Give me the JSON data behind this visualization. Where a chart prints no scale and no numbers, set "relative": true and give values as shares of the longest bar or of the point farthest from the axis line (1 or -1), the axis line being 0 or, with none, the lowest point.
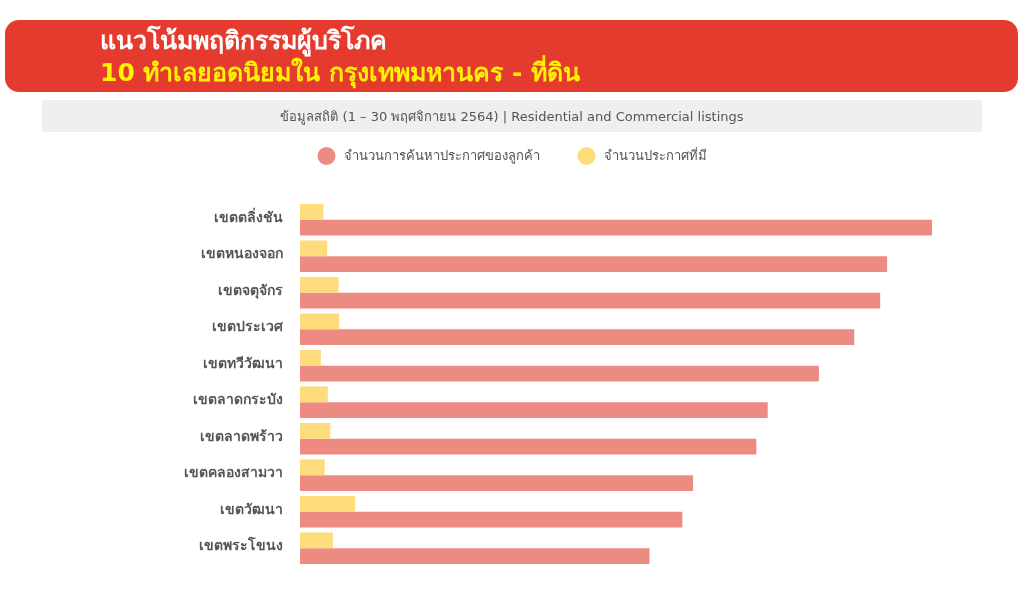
{
  "chart_data": {
    "type": "bar",
    "orientation": "horizontal",
    "relative": true,
    "legend": "top",
    "title": "แนวโน้มพฤติกรรมผู้บริโภค",
    "subtitle": "10 ทำเลยอดนิยมใน กรุงเทพมหานคร - ที่ดิน",
    "annotations": [
      "ข้อมูลสถิติ (1 – 30 พฤศจิกายน 2564) | Residential and Commercial listings"
    ],
    "categories": [
      "เขตตลิ่งชัน",
      "เขตหนองจอก",
      "เขตจตุจักร",
      "เขตประเวศ",
      "เขตทวีวัฒนา",
      "เขตลาดกระบัง",
      "เขตลาดพร้าว",
      "เขตคลองสามวา",
      "เขตวัฒนา",
      "เขตพระโขนง"
    ],
    "series": [
      {
        "name": "จำนวนการค้นหาประกาศของลูกค้า",
        "color": "#ed8a82",
        "values": [
          1,
          0.929,
          0.918,
          0.877,
          0.821,
          0.74,
          0.722,
          0.622,
          0.605,
          0.553
        ]
      },
      {
        "name": "จำนวนประกาศที่มี",
        "color": "#fedb7b",
        "values": [
          0.037,
          0.043,
          0.061,
          0.062,
          0.033,
          0.044,
          0.048,
          0.039,
          0.087,
          0.052
        ]
      }
    ]
  }
}
